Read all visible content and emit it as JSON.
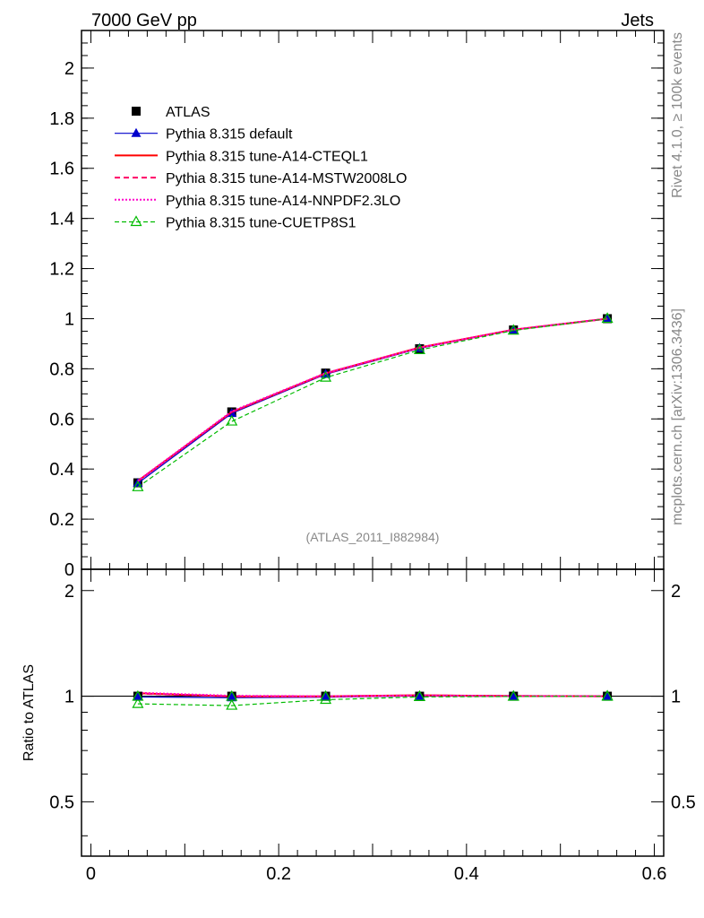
{
  "header": {
    "left": "7000 GeV pp",
    "right": "Jets"
  },
  "side_labels": {
    "rivet": "Rivet 4.1.0, ≥ 100k events",
    "mcplots": "mcplots.cern.ch [arXiv:1306.3436]"
  },
  "watermark": "(ATLAS_2011_I882984)",
  "chart_data": {
    "type": "line",
    "title": "",
    "xlabel": "",
    "ylabel": "",
    "xlim": [
      -0.01,
      0.61
    ],
    "ylim": [
      0,
      2.15
    ],
    "x_ticks": [
      "0",
      "0.2",
      "0.4",
      "0.6"
    ],
    "y_ticks": [
      "0",
      "0.2",
      "0.4",
      "0.6",
      "0.8",
      "1",
      "1.2",
      "1.4",
      "1.6",
      "1.8",
      "2"
    ],
    "x": [
      0.05,
      0.15,
      0.25,
      0.35,
      0.45,
      0.55
    ],
    "series": [
      {
        "name": "ATLAS",
        "color": "#000000",
        "style": "marker-square",
        "values": [
          0.345,
          0.628,
          0.783,
          0.88,
          0.955,
          1.0
        ]
      },
      {
        "name": "Pythia 8.315 default",
        "color": "#0000cc",
        "style": "line-triangle",
        "values": [
          0.343,
          0.622,
          0.778,
          0.882,
          0.955,
          1.0
        ]
      },
      {
        "name": "Pythia 8.315 tune-A14-CTEQL1",
        "color": "#ff0000",
        "style": "solid",
        "values": [
          0.352,
          0.627,
          0.782,
          0.885,
          0.956,
          1.0
        ]
      },
      {
        "name": "Pythia 8.315 tune-A14-MSTW2008LO",
        "color": "#ff0066",
        "style": "dashed",
        "values": [
          0.351,
          0.628,
          0.781,
          0.884,
          0.956,
          1.0
        ]
      },
      {
        "name": "Pythia 8.315 tune-A14-NNPDF2.3LO",
        "color": "#ff00cc",
        "style": "dotted",
        "values": [
          0.353,
          0.63,
          0.783,
          0.884,
          0.956,
          1.0
        ]
      },
      {
        "name": "Pythia 8.315 tune-CUETP8S1",
        "color": "#00bb00",
        "style": "dashed-open-triangle",
        "values": [
          0.328,
          0.59,
          0.765,
          0.875,
          0.953,
          1.0
        ]
      }
    ],
    "ratio": {
      "ylabel": "Ratio to ATLAS",
      "ylim": [
        0.35,
        2.3
      ],
      "y_ticks": [
        "0.5",
        "1",
        "2"
      ],
      "series": [
        {
          "name": "Pythia 8.315 default",
          "values": [
            0.995,
            0.99,
            0.994,
            1.002,
            1.0,
            1.0
          ]
        },
        {
          "name": "Pythia 8.315 tune-A14-CTEQL1",
          "values": [
            1.02,
            0.998,
            0.999,
            1.006,
            1.001,
            1.0
          ]
        },
        {
          "name": "Pythia 8.315 tune-A14-MSTW2008LO",
          "values": [
            1.017,
            1.0,
            0.998,
            1.005,
            1.001,
            1.0
          ]
        },
        {
          "name": "Pythia 8.315 tune-A14-NNPDF2.3LO",
          "values": [
            1.023,
            1.003,
            1.0,
            1.005,
            1.001,
            1.0
          ]
        },
        {
          "name": "Pythia 8.315 tune-CUETP8S1",
          "values": [
            0.951,
            0.94,
            0.977,
            0.995,
            0.998,
            1.0
          ]
        }
      ]
    }
  }
}
